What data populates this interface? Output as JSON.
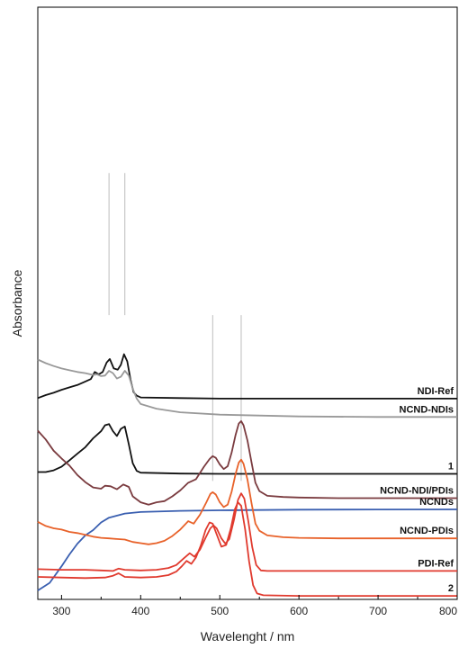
{
  "chart_data": {
    "type": "line",
    "xlabel": "Wavelenght / nm",
    "ylabel": "Absorbance",
    "xlim": [
      270,
      800
    ],
    "x_ticks": [
      300,
      400,
      500,
      600,
      700,
      800
    ],
    "x_tick_labels": [
      "300",
      "400",
      "500",
      "600",
      "700",
      "800"
    ],
    "y_ticks_shown": false,
    "grid": false,
    "legend": "none (labels drawn at right end of each trace)",
    "reference_lines_nm": [
      360,
      380,
      491,
      527
    ],
    "series": [
      {
        "name": "NCNDs",
        "color": "#3a5fb0",
        "baseline": 0.12,
        "points": [
          [
            270,
            0.985
          ],
          [
            285,
            0.972
          ],
          [
            300,
            0.944
          ],
          [
            310,
            0.924
          ],
          [
            320,
            0.906
          ],
          [
            330,
            0.892
          ],
          [
            340,
            0.883
          ],
          [
            350,
            0.87
          ],
          [
            360,
            0.862
          ],
          [
            380,
            0.855
          ],
          [
            400,
            0.8525
          ],
          [
            450,
            0.8505
          ],
          [
            500,
            0.8495
          ],
          [
            600,
            0.8485
          ],
          [
            700,
            0.8482
          ],
          [
            800,
            0.848
          ]
        ]
      },
      {
        "name": "1",
        "color": "#111111",
        "baseline": 0.28,
        "points": [
          [
            270,
            0.785
          ],
          [
            280,
            0.785
          ],
          [
            290,
            0.782
          ],
          [
            300,
            0.776
          ],
          [
            310,
            0.765
          ],
          [
            320,
            0.754
          ],
          [
            330,
            0.743
          ],
          [
            340,
            0.728
          ],
          [
            345,
            0.722
          ],
          [
            350,
            0.716
          ],
          [
            355,
            0.706
          ],
          [
            360,
            0.704
          ],
          [
            365,
            0.716
          ],
          [
            370,
            0.724
          ],
          [
            375,
            0.712
          ],
          [
            380,
            0.708
          ],
          [
            385,
            0.738
          ],
          [
            390,
            0.77
          ],
          [
            395,
            0.783
          ],
          [
            400,
            0.786
          ],
          [
            450,
            0.7875
          ],
          [
            500,
            0.788
          ],
          [
            600,
            0.788
          ],
          [
            700,
            0.788
          ],
          [
            800,
            0.788
          ]
        ]
      },
      {
        "name": "NDI-Ref",
        "color": "#111111",
        "baseline": 0.36,
        "points": [
          [
            270,
            0.66
          ],
          [
            280,
            0.655
          ],
          [
            290,
            0.651
          ],
          [
            300,
            0.646
          ],
          [
            310,
            0.642
          ],
          [
            320,
            0.638
          ],
          [
            330,
            0.632
          ],
          [
            337,
            0.628
          ],
          [
            342,
            0.616
          ],
          [
            347,
            0.62
          ],
          [
            352,
            0.616
          ],
          [
            357,
            0.6
          ],
          [
            361,
            0.594
          ],
          [
            366,
            0.61
          ],
          [
            371,
            0.612
          ],
          [
            375,
            0.604
          ],
          [
            379,
            0.586
          ],
          [
            383,
            0.598
          ],
          [
            387,
            0.628
          ],
          [
            391,
            0.65
          ],
          [
            395,
            0.656
          ],
          [
            400,
            0.659
          ],
          [
            450,
            0.66
          ],
          [
            500,
            0.661
          ],
          [
            600,
            0.661
          ],
          [
            700,
            0.661
          ],
          [
            800,
            0.661
          ]
        ]
      },
      {
        "name": "NCND-NDIs",
        "color": "#999999",
        "baseline": 0.44,
        "points": [
          [
            270,
            0.595
          ],
          [
            280,
            0.601
          ],
          [
            290,
            0.606
          ],
          [
            300,
            0.61
          ],
          [
            310,
            0.613
          ],
          [
            320,
            0.616
          ],
          [
            330,
            0.618
          ],
          [
            340,
            0.621
          ],
          [
            345,
            0.62
          ],
          [
            350,
            0.623
          ],
          [
            355,
            0.622
          ],
          [
            360,
            0.614
          ],
          [
            365,
            0.618
          ],
          [
            370,
            0.627
          ],
          [
            375,
            0.624
          ],
          [
            380,
            0.614
          ],
          [
            385,
            0.622
          ],
          [
            390,
            0.644
          ],
          [
            395,
            0.661
          ],
          [
            400,
            0.67
          ],
          [
            420,
            0.678
          ],
          [
            450,
            0.684
          ],
          [
            500,
            0.688
          ],
          [
            600,
            0.691
          ],
          [
            700,
            0.692
          ],
          [
            800,
            0.692
          ]
        ]
      },
      {
        "name": "NCND-NDI/PDIs",
        "color": "#7a3b3f",
        "baseline": 0.52,
        "points": [
          [
            270,
            0.715
          ],
          [
            280,
            0.73
          ],
          [
            290,
            0.749
          ],
          [
            300,
            0.762
          ],
          [
            310,
            0.774
          ],
          [
            320,
            0.79
          ],
          [
            330,
            0.802
          ],
          [
            340,
            0.811
          ],
          [
            350,
            0.813
          ],
          [
            355,
            0.808
          ],
          [
            362,
            0.809
          ],
          [
            370,
            0.814
          ],
          [
            378,
            0.806
          ],
          [
            385,
            0.81
          ],
          [
            390,
            0.826
          ],
          [
            400,
            0.836
          ],
          [
            410,
            0.84
          ],
          [
            420,
            0.836
          ],
          [
            430,
            0.834
          ],
          [
            440,
            0.826
          ],
          [
            450,
            0.816
          ],
          [
            460,
            0.803
          ],
          [
            470,
            0.797
          ],
          [
            480,
            0.776
          ],
          [
            487,
            0.763
          ],
          [
            491,
            0.758
          ],
          [
            495,
            0.761
          ],
          [
            500,
            0.772
          ],
          [
            505,
            0.78
          ],
          [
            510,
            0.775
          ],
          [
            515,
            0.752
          ],
          [
            520,
            0.722
          ],
          [
            524,
            0.703
          ],
          [
            527,
            0.699
          ],
          [
            530,
            0.706
          ],
          [
            535,
            0.732
          ],
          [
            540,
            0.768
          ],
          [
            545,
            0.803
          ],
          [
            550,
            0.817
          ],
          [
            560,
            0.825
          ],
          [
            580,
            0.827
          ],
          [
            600,
            0.828
          ],
          [
            650,
            0.829
          ],
          [
            700,
            0.829
          ],
          [
            750,
            0.829
          ],
          [
            800,
            0.829
          ]
        ]
      },
      {
        "name": "NCND-PDIs",
        "color": "#e8622a",
        "baseline": 0.62,
        "points": [
          [
            270,
            0.869
          ],
          [
            280,
            0.876
          ],
          [
            290,
            0.88
          ],
          [
            300,
            0.882
          ],
          [
            310,
            0.886
          ],
          [
            320,
            0.888
          ],
          [
            330,
            0.891
          ],
          [
            340,
            0.894
          ],
          [
            350,
            0.896
          ],
          [
            360,
            0.897
          ],
          [
            370,
            0.898
          ],
          [
            380,
            0.899
          ],
          [
            390,
            0.903
          ],
          [
            400,
            0.905
          ],
          [
            410,
            0.907
          ],
          [
            420,
            0.905
          ],
          [
            430,
            0.901
          ],
          [
            440,
            0.893
          ],
          [
            450,
            0.882
          ],
          [
            460,
            0.868
          ],
          [
            467,
            0.872
          ],
          [
            475,
            0.857
          ],
          [
            483,
            0.836
          ],
          [
            488,
            0.822
          ],
          [
            491,
            0.819
          ],
          [
            495,
            0.823
          ],
          [
            500,
            0.836
          ],
          [
            505,
            0.844
          ],
          [
            510,
            0.84
          ],
          [
            515,
            0.818
          ],
          [
            520,
            0.788
          ],
          [
            524,
            0.769
          ],
          [
            527,
            0.764
          ],
          [
            530,
            0.771
          ],
          [
            535,
            0.798
          ],
          [
            540,
            0.837
          ],
          [
            545,
            0.872
          ],
          [
            550,
            0.884
          ],
          [
            560,
            0.892
          ],
          [
            580,
            0.895
          ],
          [
            600,
            0.896
          ],
          [
            650,
            0.897
          ],
          [
            700,
            0.897
          ],
          [
            750,
            0.897
          ],
          [
            800,
            0.897
          ]
        ]
      },
      {
        "name": "PDI-Ref",
        "color": "#e03a2e",
        "baseline": 0.72,
        "points": [
          [
            270,
            0.949
          ],
          [
            300,
            0.95
          ],
          [
            330,
            0.95
          ],
          [
            350,
            0.951
          ],
          [
            365,
            0.952
          ],
          [
            372,
            0.948
          ],
          [
            380,
            0.95
          ],
          [
            400,
            0.951
          ],
          [
            420,
            0.95
          ],
          [
            435,
            0.947
          ],
          [
            445,
            0.942
          ],
          [
            455,
            0.93
          ],
          [
            462,
            0.922
          ],
          [
            468,
            0.928
          ],
          [
            475,
            0.916
          ],
          [
            482,
            0.896
          ],
          [
            488,
            0.88
          ],
          [
            492,
            0.875
          ],
          [
            496,
            0.88
          ],
          [
            502,
            0.897
          ],
          [
            507,
            0.906
          ],
          [
            512,
            0.898
          ],
          [
            518,
            0.865
          ],
          [
            523,
            0.832
          ],
          [
            527,
            0.821
          ],
          [
            531,
            0.83
          ],
          [
            536,
            0.868
          ],
          [
            541,
            0.912
          ],
          [
            546,
            0.942
          ],
          [
            552,
            0.951
          ],
          [
            560,
            0.952
          ],
          [
            600,
            0.952
          ],
          [
            700,
            0.952
          ],
          [
            800,
            0.952
          ]
        ]
      },
      {
        "name": "2",
        "color": "#e03a2e",
        "baseline": 0.8,
        "points": [
          [
            270,
            0.962
          ],
          [
            300,
            0.963
          ],
          [
            330,
            0.964
          ],
          [
            355,
            0.963
          ],
          [
            365,
            0.96
          ],
          [
            372,
            0.956
          ],
          [
            380,
            0.962
          ],
          [
            400,
            0.963
          ],
          [
            420,
            0.962
          ],
          [
            435,
            0.959
          ],
          [
            445,
            0.953
          ],
          [
            452,
            0.944
          ],
          [
            458,
            0.935
          ],
          [
            464,
            0.94
          ],
          [
            470,
            0.929
          ],
          [
            476,
            0.909
          ],
          [
            482,
            0.883
          ],
          [
            487,
            0.87
          ],
          [
            491,
            0.872
          ],
          [
            496,
            0.89
          ],
          [
            502,
            0.911
          ],
          [
            508,
            0.908
          ],
          [
            514,
            0.88
          ],
          [
            519,
            0.848
          ],
          [
            523,
            0.836
          ],
          [
            527,
            0.842
          ],
          [
            532,
            0.882
          ],
          [
            537,
            0.936
          ],
          [
            542,
            0.976
          ],
          [
            547,
            0.99
          ],
          [
            555,
            0.993
          ],
          [
            600,
            0.994
          ],
          [
            700,
            0.994
          ],
          [
            800,
            0.994
          ]
        ]
      }
    ]
  }
}
